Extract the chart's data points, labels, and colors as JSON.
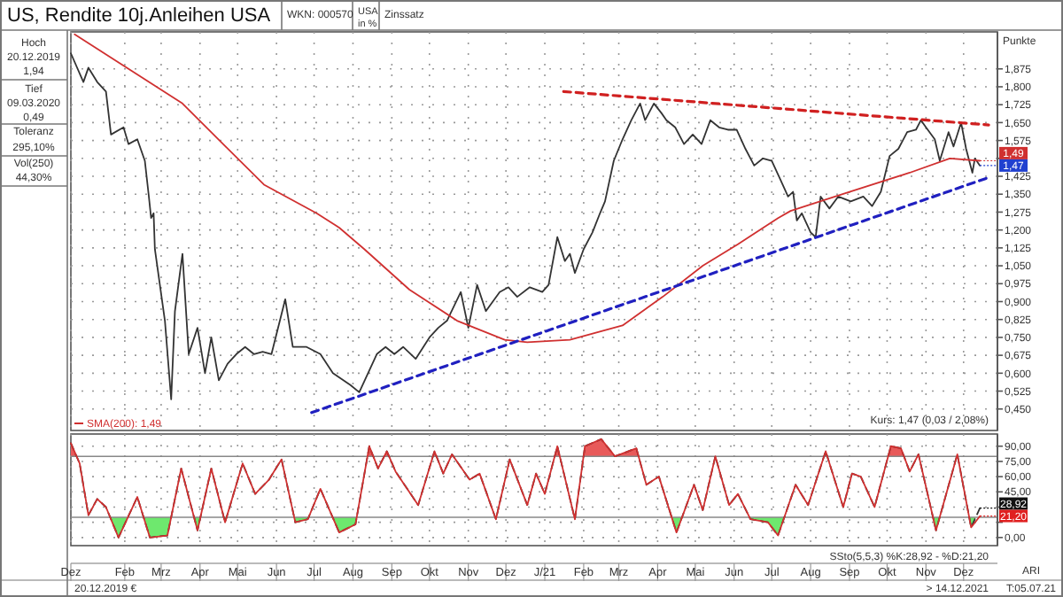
{
  "chart_data": [
    {
      "type": "line",
      "title": "US, Rendite 10j.Anleihen USA",
      "ylabel": "Punkte",
      "annotations": [
        "WKN: 000570",
        "USA",
        "in %",
        "Zinssatz",
        "Hoch",
        "20.12.2019",
        "1,94",
        "Tief",
        "09.03.2020",
        "0,49",
        "Toleranz",
        "295,10%",
        "Vol(250)",
        "44,30%",
        "Kurs: 1,47 (0,03 / 2,08%)",
        {
          "text": "1,49",
          "x": "2021-12-14",
          "y": 1.49
        },
        {
          "text": "1,47",
          "x": "2021-12-14",
          "y": 1.47
        }
      ],
      "xlim": [
        "2019-12-20",
        "2021-12-28"
      ],
      "xticks": [
        {
          "value": "2019-12-20",
          "label": null
        },
        {
          "value": "2020-02-01",
          "label": null
        },
        {
          "value": "2020-03-01",
          "label": null
        },
        {
          "value": "2020-04-01",
          "label": null
        },
        {
          "value": "2020-05-01",
          "label": null
        },
        {
          "value": "2020-06-01",
          "label": null
        },
        {
          "value": "2020-07-01",
          "label": null
        },
        {
          "value": "2020-08-01",
          "label": null
        },
        {
          "value": "2020-09-01",
          "label": null
        },
        {
          "value": "2020-10-01",
          "label": null
        },
        {
          "value": "2020-11-01",
          "label": null
        },
        {
          "value": "2020-12-01",
          "label": null
        },
        {
          "value": "2021-01-01",
          "label": null
        },
        {
          "value": "2021-02-01",
          "label": null
        },
        {
          "value": "2021-03-01",
          "label": null
        },
        {
          "value": "2021-04-01",
          "label": null
        },
        {
          "value": "2021-05-01",
          "label": null
        },
        {
          "value": "2021-06-01",
          "label": null
        },
        {
          "value": "2021-07-01",
          "label": null
        },
        {
          "value": "2021-08-01",
          "label": null
        },
        {
          "value": "2021-09-01",
          "label": null
        },
        {
          "value": "2021-10-01",
          "label": null
        },
        {
          "value": "2021-11-01",
          "label": null
        },
        {
          "value": "2021-12-01",
          "label": null
        }
      ],
      "ylim": [
        0.36,
        2.03
      ],
      "yticks": [
        {
          "value": 0.45,
          "label": "0,450"
        },
        {
          "value": 0.525,
          "label": "0,525"
        },
        {
          "value": 0.6,
          "label": "0,600"
        },
        {
          "value": 0.675,
          "label": "0,675"
        },
        {
          "value": 0.75,
          "label": "0,750"
        },
        {
          "value": 0.825,
          "label": "0,825"
        },
        {
          "value": 0.9,
          "label": "0,900"
        },
        {
          "value": 0.975,
          "label": "0,975"
        },
        {
          "value": 1.05,
          "label": "1,050"
        },
        {
          "value": 1.125,
          "label": "1,125"
        },
        {
          "value": 1.2,
          "label": "1,200"
        },
        {
          "value": 1.275,
          "label": "1,275"
        },
        {
          "value": 1.35,
          "label": "1,350"
        },
        {
          "value": 1.425,
          "label": "1,425"
        },
        {
          "value": 1.5,
          "label": null
        },
        {
          "value": 1.575,
          "label": "1,575"
        },
        {
          "value": 1.65,
          "label": "1,650"
        },
        {
          "value": 1.725,
          "label": "1,725"
        },
        {
          "value": 1.8,
          "label": "1,800"
        },
        {
          "value": 1.875,
          "label": "1,875"
        }
      ],
      "grid": true,
      "tick_labels": "y",
      "legend": "bottom left",
      "series": [
        {
          "color": "#333333",
          "x": [
            "2019-12-20",
            "2019-12-30",
            "2020-01-03",
            "2020-01-10",
            "2020-01-17",
            "2020-01-21",
            "2020-01-31",
            "2020-02-04",
            "2020-02-11",
            "2020-02-17",
            "2020-02-20",
            "2020-02-22",
            "2020-02-24",
            "2020-02-25",
            "2020-03-04",
            "2020-03-09",
            "2020-03-12",
            "2020-03-18",
            "2020-03-23",
            "2020-03-30",
            "2020-04-05",
            "2020-04-10",
            "2020-04-16",
            "2020-04-23",
            "2020-04-30",
            "2020-05-07",
            "2020-05-14",
            "2020-05-21",
            "2020-05-28",
            "2020-06-08",
            "2020-06-14",
            "2020-06-25",
            "2020-07-06",
            "2020-07-16",
            "2020-07-30",
            "2020-08-06",
            "2020-08-13",
            "2020-08-20",
            "2020-08-27",
            "2020-09-03",
            "2020-09-10",
            "2020-09-20",
            "2020-10-01",
            "2020-10-08",
            "2020-10-15",
            "2020-10-26",
            "2020-11-01",
            "2020-11-08",
            "2020-11-15",
            "2020-11-26",
            "2020-12-03",
            "2020-12-10",
            "2020-12-20",
            "2020-12-30",
            "2021-01-04",
            "2021-01-11",
            "2021-01-17",
            "2021-01-21",
            "2021-01-25",
            "2021-02-01",
            "2021-02-08",
            "2021-02-14",
            "2021-02-18",
            "2021-02-25",
            "2021-03-04",
            "2021-03-11",
            "2021-03-18",
            "2021-03-22",
            "2021-03-29",
            "2021-04-04",
            "2021-04-08",
            "2021-04-15",
            "2021-04-22",
            "2021-04-29",
            "2021-05-06",
            "2021-05-13",
            "2021-05-20",
            "2021-05-27",
            "2021-06-03",
            "2021-06-10",
            "2021-06-17",
            "2021-06-24",
            "2021-07-01",
            "2021-07-08",
            "2021-07-14",
            "2021-07-18",
            "2021-07-21",
            "2021-07-25",
            "2021-08-01",
            "2021-08-05",
            "2021-08-09",
            "2021-08-16",
            "2021-08-23",
            "2021-09-02",
            "2021-09-12",
            "2021-09-19",
            "2021-09-26",
            "2021-10-03",
            "2021-10-10",
            "2021-10-17",
            "2021-10-24",
            "2021-10-28",
            "2021-11-01",
            "2021-11-08",
            "2021-11-12",
            "2021-11-19",
            "2021-11-23",
            "2021-11-29",
            "2021-12-03",
            "2021-12-08",
            "2021-12-10",
            "2021-12-14"
          ],
          "values": [
            1.94,
            1.82,
            1.88,
            1.82,
            1.78,
            1.6,
            1.63,
            1.56,
            1.58,
            1.49,
            1.35,
            1.25,
            1.27,
            1.12,
            0.82,
            0.49,
            0.86,
            1.1,
            0.68,
            0.79,
            0.6,
            0.75,
            0.57,
            0.64,
            0.68,
            0.71,
            0.68,
            0.69,
            0.68,
            0.91,
            0.71,
            0.71,
            0.68,
            0.6,
            0.55,
            0.52,
            0.6,
            0.68,
            0.71,
            0.68,
            0.71,
            0.66,
            0.75,
            0.79,
            0.82,
            0.94,
            0.79,
            0.97,
            0.86,
            0.94,
            0.96,
            0.92,
            0.96,
            0.94,
            0.97,
            1.17,
            1.07,
            1.1,
            1.02,
            1.12,
            1.19,
            1.27,
            1.32,
            1.49,
            1.58,
            1.66,
            1.73,
            1.66,
            1.73,
            1.69,
            1.66,
            1.63,
            1.56,
            1.6,
            1.56,
            1.66,
            1.63,
            1.62,
            1.62,
            1.54,
            1.47,
            1.5,
            1.49,
            1.41,
            1.34,
            1.36,
            1.24,
            1.27,
            1.19,
            1.17,
            1.34,
            1.29,
            1.34,
            1.32,
            1.34,
            1.3,
            1.36,
            1.51,
            1.54,
            1.61,
            1.62,
            1.66,
            1.63,
            1.58,
            1.49,
            1.61,
            1.55,
            1.65,
            1.54,
            1.44,
            1.5,
            1.47
          ]
        },
        {
          "name": "SMA(200): 1,49",
          "color": "#d03030",
          "x": [
            "2019-12-23",
            "2020-03-18",
            "2020-05-22",
            "2020-07-03",
            "2020-07-21",
            "2020-08-10",
            "2020-09-15",
            "2020-10-23",
            "2020-11-30",
            "2020-12-18",
            "2021-01-21",
            "2021-03-04",
            "2021-04-05",
            "2021-05-07",
            "2021-06-04",
            "2021-07-06",
            "2021-07-16",
            "2021-09-01",
            "2021-10-19",
            "2021-11-20",
            "2021-12-14"
          ],
          "values": [
            2.02,
            1.73,
            1.39,
            1.27,
            1.21,
            1.12,
            0.95,
            0.82,
            0.74,
            0.73,
            0.74,
            0.8,
            0.92,
            1.05,
            1.14,
            1.25,
            1.28,
            1.36,
            1.44,
            1.5,
            1.49
          ]
        },
        {
          "color": "#d02020",
          "line_style": "dashed",
          "x": [
            "2021-01-16",
            "2021-12-21"
          ],
          "values": [
            1.78,
            1.64
          ]
        },
        {
          "color": "#2020c0",
          "line_style": "dashed",
          "x": [
            "2020-06-29",
            "2021-12-21"
          ],
          "values": [
            0.435,
            1.42
          ]
        }
      ]
    },
    {
      "type": "line",
      "annotations": [
        "SSto(5,5,3) %K:28,92 - %D:21,20",
        {
          "text": "28,92",
          "x": "2021-12-14",
          "y": 28.92
        },
        {
          "text": "21,20",
          "x": "2021-12-14",
          "y": 21.2
        },
        "20.12.2019 €",
        "> 14.12.2021",
        "ARI",
        "T:05.07.21"
      ],
      "xlim": [
        "2019-12-20",
        "2021-12-28"
      ],
      "xticks": [
        {
          "value": "2019-12-20",
          "label": "Dez"
        },
        {
          "value": "2020-02-01",
          "label": "Feb"
        },
        {
          "value": "2020-03-01",
          "label": "Mrz"
        },
        {
          "value": "2020-04-01",
          "label": "Apr"
        },
        {
          "value": "2020-05-01",
          "label": "Mai"
        },
        {
          "value": "2020-06-01",
          "label": "Jun"
        },
        {
          "value": "2020-07-01",
          "label": "Jul"
        },
        {
          "value": "2020-08-01",
          "label": "Aug"
        },
        {
          "value": "2020-09-01",
          "label": "Sep"
        },
        {
          "value": "2020-10-01",
          "label": "Okt"
        },
        {
          "value": "2020-11-01",
          "label": "Nov"
        },
        {
          "value": "2020-12-01",
          "label": "Dez"
        },
        {
          "value": "2021-01-01",
          "label": "J/21"
        },
        {
          "value": "2021-02-01",
          "label": "Feb"
        },
        {
          "value": "2021-03-01",
          "label": "Mrz"
        },
        {
          "value": "2021-04-01",
          "label": "Apr"
        },
        {
          "value": "2021-05-01",
          "label": "Mai"
        },
        {
          "value": "2021-06-01",
          "label": "Jun"
        },
        {
          "value": "2021-07-01",
          "label": "Jul"
        },
        {
          "value": "2021-08-01",
          "label": "Aug"
        },
        {
          "value": "2021-09-01",
          "label": "Sep"
        },
        {
          "value": "2021-10-01",
          "label": "Okt"
        },
        {
          "value": "2021-11-01",
          "label": "Nov"
        },
        {
          "value": "2021-12-01",
          "label": "Dez"
        }
      ],
      "ylim": [
        -8,
        102
      ],
      "yticks": [
        {
          "value": 0,
          "label": "0,00"
        },
        {
          "value": 15,
          "label": null
        },
        {
          "value": 30,
          "label": null
        },
        {
          "value": 45,
          "label": "45,00"
        },
        {
          "value": 60,
          "label": "60,00"
        },
        {
          "value": 75,
          "label": "75,00"
        },
        {
          "value": 90,
          "label": "90,00"
        }
      ],
      "grid": true,
      "ref_lines": [
        {
          "axis": "y",
          "value": 80,
          "color": "#888888"
        },
        {
          "axis": "y",
          "value": 20,
          "color": "#888888"
        }
      ],
      "series": [
        {
          "color": "#333333",
          "line_style": "dashed",
          "x": [
            "2019-12-20",
            "2019-12-27",
            "2020-01-03",
            "2020-01-10",
            "2020-01-17",
            "2020-01-27",
            "2020-02-11",
            "2020-02-21",
            "2020-03-06",
            "2020-03-17",
            "2020-03-30",
            "2020-04-10",
            "2020-04-21",
            "2020-05-05",
            "2020-05-15",
            "2020-05-26",
            "2020-06-05",
            "2020-06-16",
            "2020-06-26",
            "2020-07-06",
            "2020-07-21",
            "2020-08-03",
            "2020-08-14",
            "2020-08-21",
            "2020-08-28",
            "2020-09-04",
            "2020-09-22",
            "2020-10-05",
            "2020-10-12",
            "2020-10-19",
            "2020-11-02",
            "2020-11-10",
            "2020-11-23",
            "2020-12-04",
            "2020-12-18",
            "2020-12-25",
            "2021-01-01",
            "2021-01-11",
            "2021-01-25",
            "2021-02-02",
            "2021-02-15",
            "2021-02-26",
            "2021-03-15",
            "2021-03-23",
            "2021-04-02",
            "2021-04-16",
            "2021-04-30",
            "2021-05-07",
            "2021-05-17",
            "2021-05-28",
            "2021-06-04",
            "2021-06-14",
            "2021-06-28",
            "2021-07-06",
            "2021-07-20",
            "2021-07-30",
            "2021-08-13",
            "2021-08-27",
            "2021-09-03",
            "2021-09-10",
            "2021-09-21",
            "2021-10-04",
            "2021-10-12",
            "2021-10-19",
            "2021-10-26",
            "2021-11-09",
            "2021-11-26",
            "2021-12-07",
            "2021-12-14"
          ],
          "values": [
            93,
            73,
            22,
            38,
            30,
            0,
            40,
            0,
            2,
            68,
            7,
            68,
            15,
            73,
            43,
            57,
            77,
            15,
            18,
            48,
            5,
            13,
            90,
            68,
            85,
            65,
            32,
            85,
            63,
            82,
            57,
            63,
            18,
            77,
            32,
            63,
            43,
            90,
            18,
            90,
            97,
            80,
            88,
            52,
            60,
            5,
            52,
            27,
            80,
            32,
            43,
            18,
            15,
            2,
            52,
            32,
            85,
            30,
            63,
            60,
            30,
            90,
            88,
            65,
            82,
            7,
            82,
            10,
            29
          ]
        },
        {
          "color": "#d03030",
          "x": [
            "2019-12-20",
            "2019-12-27",
            "2020-01-03",
            "2020-01-10",
            "2020-01-17",
            "2020-01-27",
            "2020-02-11",
            "2020-02-21",
            "2020-03-06",
            "2020-03-17",
            "2020-03-30",
            "2020-04-10",
            "2020-04-21",
            "2020-05-05",
            "2020-05-15",
            "2020-05-26",
            "2020-06-05",
            "2020-06-16",
            "2020-06-26",
            "2020-07-06",
            "2020-07-21",
            "2020-08-03",
            "2020-08-14",
            "2020-08-21",
            "2020-08-28",
            "2020-09-04",
            "2020-09-22",
            "2020-10-05",
            "2020-10-12",
            "2020-10-19",
            "2020-11-02",
            "2020-11-10",
            "2020-11-23",
            "2020-12-04",
            "2020-12-18",
            "2020-12-25",
            "2021-01-01",
            "2021-01-11",
            "2021-01-25",
            "2021-02-02",
            "2021-02-15",
            "2021-02-26",
            "2021-03-15",
            "2021-03-23",
            "2021-04-02",
            "2021-04-16",
            "2021-04-30",
            "2021-05-07",
            "2021-05-17",
            "2021-05-28",
            "2021-06-04",
            "2021-06-14",
            "2021-06-28",
            "2021-07-06",
            "2021-07-20",
            "2021-07-30",
            "2021-08-13",
            "2021-08-27",
            "2021-09-03",
            "2021-09-10",
            "2021-09-21",
            "2021-10-04",
            "2021-10-12",
            "2021-10-19",
            "2021-10-26",
            "2021-11-09",
            "2021-11-26",
            "2021-12-07",
            "2021-12-14"
          ],
          "values": [
            93,
            73,
            22,
            38,
            30,
            0,
            40,
            0,
            2,
            68,
            7,
            68,
            15,
            73,
            43,
            57,
            77,
            15,
            18,
            48,
            5,
            13,
            90,
            68,
            85,
            65,
            32,
            85,
            63,
            82,
            57,
            63,
            18,
            77,
            32,
            63,
            43,
            90,
            18,
            90,
            97,
            80,
            88,
            52,
            60,
            5,
            52,
            27,
            80,
            32,
            43,
            18,
            15,
            2,
            52,
            32,
            85,
            30,
            63,
            60,
            30,
            90,
            88,
            65,
            82,
            7,
            82,
            10,
            21
          ]
        }
      ]
    }
  ]
}
